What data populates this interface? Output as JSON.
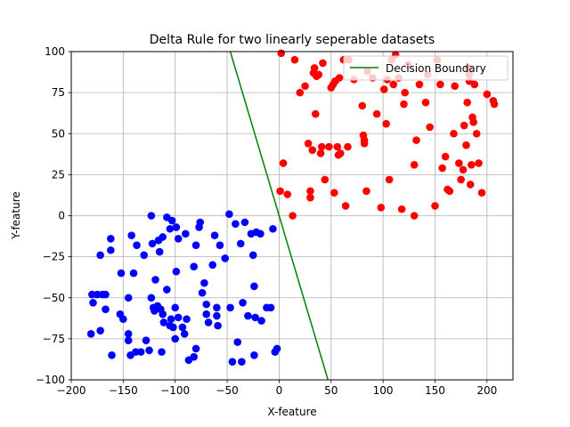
{
  "chart_data": {
    "type": "scatter",
    "title": "Delta Rule for two linearly seperable datasets",
    "xlabel": "X-feature",
    "ylabel": "Y-feature",
    "xlim": [
      -200,
      225
    ],
    "ylim": [
      -100,
      100
    ],
    "xticks": [
      -200,
      -150,
      -100,
      -50,
      0,
      50,
      100,
      150,
      200
    ],
    "xtick_labels": [
      "−200",
      "−150",
      "−100",
      "−50",
      "0",
      "50",
      "100",
      "150",
      "200"
    ],
    "yticks": [
      -100,
      -75,
      -50,
      -25,
      0,
      25,
      50,
      75,
      100
    ],
    "ytick_labels": [
      "−100",
      "−75",
      "−50",
      "−25",
      "0",
      "25",
      "50",
      "75",
      "100"
    ],
    "grid": true,
    "legend_position": "top-right",
    "line": {
      "name": "Decision Boundary",
      "color": "#008000",
      "x": [
        -47,
        47
      ],
      "y": [
        100,
        -100
      ]
    },
    "series": [
      {
        "color": "#0000ff",
        "points": [
          [
            -180,
            -48
          ],
          [
            -175,
            -48
          ],
          [
            -170,
            -48
          ],
          [
            -179,
            -53
          ],
          [
            -167,
            -48
          ],
          [
            -181,
            -72
          ],
          [
            -172,
            -70
          ],
          [
            -167,
            -57
          ],
          [
            -172,
            -24
          ],
          [
            -162,
            -21
          ],
          [
            -162,
            -14
          ],
          [
            -161,
            -85
          ],
          [
            -153,
            -60
          ],
          [
            -150,
            -63
          ],
          [
            -152,
            -35
          ],
          [
            -145,
            -50
          ],
          [
            -145,
            -72
          ],
          [
            -145,
            -76
          ],
          [
            -143,
            -85
          ],
          [
            -142,
            -12
          ],
          [
            -140,
            -35
          ],
          [
            -138,
            -83
          ],
          [
            -137,
            -18
          ],
          [
            -133,
            -83
          ],
          [
            -130,
            -24
          ],
          [
            -128,
            -76
          ],
          [
            -125,
            -82
          ],
          [
            -123,
            0
          ],
          [
            -123,
            -50
          ],
          [
            -122,
            -17
          ],
          [
            -121,
            -56
          ],
          [
            -120,
            -58
          ],
          [
            -119,
            -39
          ],
          [
            -117,
            -55
          ],
          [
            -116,
            -15
          ],
          [
            -115,
            -22
          ],
          [
            -114,
            -57
          ],
          [
            -113,
            -83
          ],
          [
            -112,
            -13
          ],
          [
            -112,
            -60
          ],
          [
            -111,
            -65
          ],
          [
            -108,
            -1
          ],
          [
            -108,
            -45
          ],
          [
            -105,
            -67
          ],
          [
            -105,
            -8
          ],
          [
            -104,
            -63
          ],
          [
            -103,
            -3
          ],
          [
            -102,
            -68
          ],
          [
            -100,
            -56
          ],
          [
            -100,
            -75
          ],
          [
            -99,
            -34
          ],
          [
            -99,
            -7
          ],
          [
            -97,
            -14
          ],
          [
            -97,
            -62
          ],
          [
            -93,
            -68
          ],
          [
            -91,
            -72
          ],
          [
            -90,
            -11
          ],
          [
            -89,
            -63
          ],
          [
            -87,
            -88
          ],
          [
            -82,
            -31
          ],
          [
            -82,
            -86
          ],
          [
            -80,
            -81
          ],
          [
            -80,
            -18
          ],
          [
            -77,
            -7
          ],
          [
            -76,
            -4
          ],
          [
            -74,
            -47
          ],
          [
            -72,
            -41
          ],
          [
            -70,
            -60
          ],
          [
            -70,
            -54
          ],
          [
            -68,
            -65
          ],
          [
            -64,
            -30
          ],
          [
            -62,
            -12
          ],
          [
            -60,
            -56
          ],
          [
            -60,
            -61
          ],
          [
            -59,
            -67
          ],
          [
            -57,
            -18
          ],
          [
            -52,
            -26
          ],
          [
            -48,
            1
          ],
          [
            -47,
            -56
          ],
          [
            -45,
            -89
          ],
          [
            -42,
            -5
          ],
          [
            -40,
            -77
          ],
          [
            -37,
            -17
          ],
          [
            -36,
            -89
          ],
          [
            -35,
            -53
          ],
          [
            -33,
            -4
          ],
          [
            -30,
            -61
          ],
          [
            -27,
            -11
          ],
          [
            -25,
            -24
          ],
          [
            -24,
            -43
          ],
          [
            -24,
            -85
          ],
          [
            -23,
            -62
          ],
          [
            -22,
            -10
          ],
          [
            -18,
            -11
          ],
          [
            -17,
            -64
          ],
          [
            -12,
            -56
          ],
          [
            -8,
            -56
          ],
          [
            -6,
            -8
          ],
          [
            -4,
            -83
          ],
          [
            -2,
            -81
          ]
        ]
      },
      {
        "color": "#ff0000",
        "points": [
          [
            2,
            99
          ],
          [
            1,
            15
          ],
          [
            4,
            32
          ],
          [
            8,
            13
          ],
          [
            13,
            0
          ],
          [
            15,
            95
          ],
          [
            20,
            75
          ],
          [
            25,
            79
          ],
          [
            28,
            44
          ],
          [
            30,
            15
          ],
          [
            30,
            11
          ],
          [
            32,
            40
          ],
          [
            33,
            87
          ],
          [
            34,
            90
          ],
          [
            35,
            62
          ],
          [
            36,
            85
          ],
          [
            38,
            86
          ],
          [
            40,
            38
          ],
          [
            41,
            42
          ],
          [
            42,
            93
          ],
          [
            44,
            22
          ],
          [
            48,
            42
          ],
          [
            50,
            78
          ],
          [
            52,
            80
          ],
          [
            53,
            14
          ],
          [
            54,
            82
          ],
          [
            56,
            42
          ],
          [
            57,
            37
          ],
          [
            58,
            84
          ],
          [
            59,
            38
          ],
          [
            62,
            95
          ],
          [
            64,
            6
          ],
          [
            66,
            42
          ],
          [
            67,
            95
          ],
          [
            72,
            83
          ],
          [
            80,
            67
          ],
          [
            81,
            49
          ],
          [
            82,
            44
          ],
          [
            82,
            46
          ],
          [
            84,
            15
          ],
          [
            85,
            88
          ],
          [
            90,
            84
          ],
          [
            94,
            62
          ],
          [
            98,
            5
          ],
          [
            101,
            77
          ],
          [
            103,
            56
          ],
          [
            104,
            83
          ],
          [
            106,
            22
          ],
          [
            108,
            95
          ],
          [
            110,
            80
          ],
          [
            112,
            98
          ],
          [
            115,
            84
          ],
          [
            118,
            4
          ],
          [
            120,
            68
          ],
          [
            121,
            75
          ],
          [
            124,
            92
          ],
          [
            130,
            31
          ],
          [
            130,
            0
          ],
          [
            132,
            46
          ],
          [
            135,
            80
          ],
          [
            141,
            69
          ],
          [
            143,
            86
          ],
          [
            145,
            54
          ],
          [
            150,
            6
          ],
          [
            152,
            95
          ],
          [
            155,
            80
          ],
          [
            157,
            29
          ],
          [
            160,
            36
          ],
          [
            162,
            16
          ],
          [
            164,
            15
          ],
          [
            168,
            50
          ],
          [
            169,
            79
          ],
          [
            173,
            32
          ],
          [
            175,
            22
          ],
          [
            177,
            28
          ],
          [
            178,
            55
          ],
          [
            180,
            43
          ],
          [
            181,
            69
          ],
          [
            182,
            90
          ],
          [
            183,
            86
          ],
          [
            183,
            82
          ],
          [
            184,
            19
          ],
          [
            185,
            31
          ],
          [
            186,
            60
          ],
          [
            187,
            57
          ],
          [
            188,
            80
          ],
          [
            190,
            50
          ],
          [
            192,
            32
          ],
          [
            195,
            14
          ],
          [
            200,
            74
          ],
          [
            206,
            70
          ],
          [
            207,
            68
          ]
        ]
      }
    ]
  }
}
